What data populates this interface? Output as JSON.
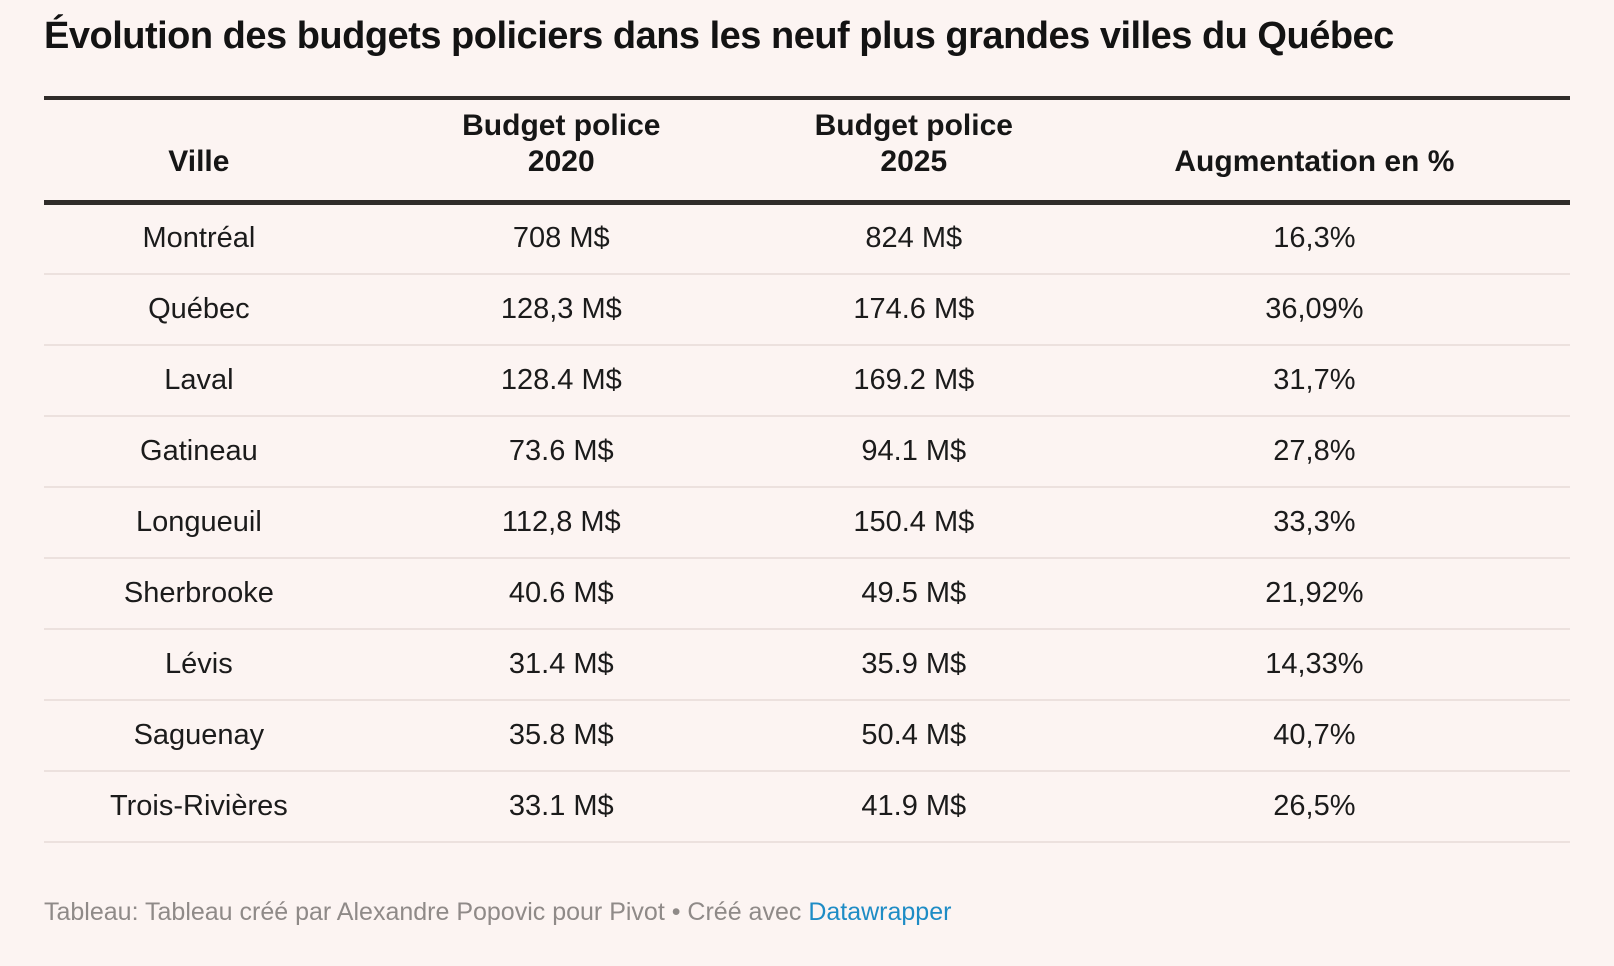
{
  "title": "Évolution des budgets policiers dans les neuf plus grandes villes du Québec",
  "colors": {
    "background": "#fcf4f2",
    "rule_dark": "#302c2a",
    "row_separator": "#ece1de",
    "footer_text": "#8f8a88",
    "link_blue": "#1e8cc5"
  },
  "table": {
    "columns": [
      {
        "label": "Ville"
      },
      {
        "line1": "Budget police",
        "line2": "2020"
      },
      {
        "line1": "Budget police",
        "line2": "2025"
      },
      {
        "label": "Augmentation en %"
      }
    ],
    "rows": [
      {
        "city": "Montréal",
        "b2020": "708 M$",
        "b2025": "824 M$",
        "pct": "16,3%"
      },
      {
        "city": "Québec",
        "b2020": "128,3 M$",
        "b2025": "174.6 M$",
        "pct": "36,09%"
      },
      {
        "city": "Laval",
        "b2020": "128.4 M$",
        "b2025": "169.2 M$",
        "pct": "31,7%"
      },
      {
        "city": "Gatineau",
        "b2020": "73.6 M$",
        "b2025": "94.1 M$",
        "pct": "27,8%"
      },
      {
        "city": "Longueuil",
        "b2020": "112,8 M$",
        "b2025": "150.4 M$",
        "pct": "33,3%"
      },
      {
        "city": "Sherbrooke",
        "b2020": "40.6 M$",
        "b2025": "49.5 M$",
        "pct": "21,92%"
      },
      {
        "city": "Lévis",
        "b2020": "31.4 M$",
        "b2025": "35.9 M$",
        "pct": "14,33%"
      },
      {
        "city": "Saguenay",
        "b2020": "35.8 M$",
        "b2025": "50.4 M$",
        "pct": "40,7%"
      },
      {
        "city": "Trois-Rivières",
        "b2020": "33.1 M$",
        "b2025": "41.9 M$",
        "pct": "26,5%"
      }
    ]
  },
  "footer": {
    "text": "Tableau: Tableau créé par Alexandre Popovic pour Pivot • Créé avec ",
    "link_label": "Datawrapper"
  },
  "chart_data": {
    "type": "table",
    "title": "Évolution des budgets policiers dans les neuf plus grandes villes du Québec",
    "columns": [
      "Ville",
      "Budget police 2020",
      "Budget police 2025",
      "Augmentation en %"
    ],
    "rows": [
      [
        "Montréal",
        "708 M$",
        "824 M$",
        "16,3%"
      ],
      [
        "Québec",
        "128,3 M$",
        "174.6 M$",
        "36,09%"
      ],
      [
        "Laval",
        "128.4 M$",
        "169.2 M$",
        "31,7%"
      ],
      [
        "Gatineau",
        "73.6 M$",
        "94.1 M$",
        "27,8%"
      ],
      [
        "Longueuil",
        "112,8 M$",
        "150.4 M$",
        "33,3%"
      ],
      [
        "Sherbrooke",
        "40.6 M$",
        "49.5 M$",
        "21,92%"
      ],
      [
        "Lévis",
        "31.4 M$",
        "35.9 M$",
        "14,33%"
      ],
      [
        "Saguenay",
        "35.8 M$",
        "50.4 M$",
        "40,7%"
      ],
      [
        "Trois-Rivières",
        "33.1 M$",
        "41.9 M$",
        "26,5%"
      ]
    ],
    "numeric": {
      "budget_2020_millions": [
        708,
        128.3,
        128.4,
        73.6,
        112.8,
        40.6,
        31.4,
        35.8,
        33.1
      ],
      "budget_2025_millions": [
        824,
        174.6,
        169.2,
        94.1,
        150.4,
        49.5,
        35.9,
        50.4,
        41.9
      ],
      "augmentation_pct": [
        16.3,
        36.09,
        31.7,
        27.8,
        33.3,
        21.92,
        14.33,
        40.7,
        26.5
      ]
    }
  }
}
